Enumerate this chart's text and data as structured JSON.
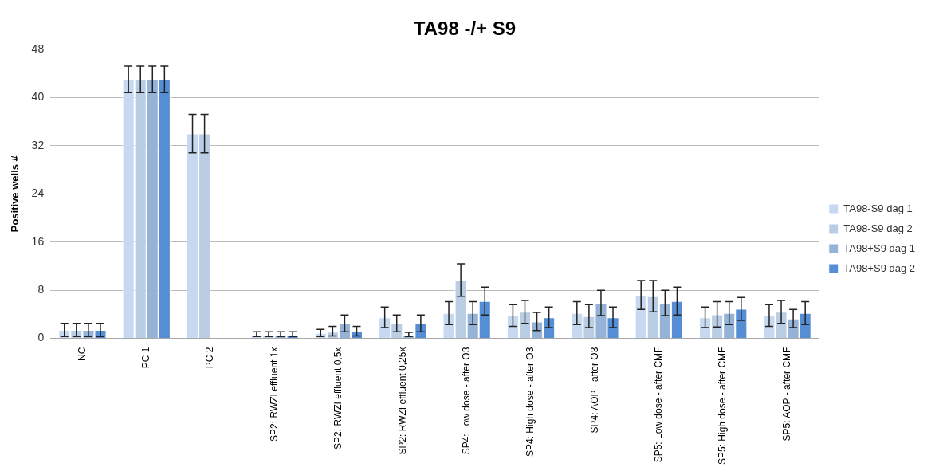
{
  "chart_data": {
    "type": "bar",
    "title": "TA98 -/+ S9",
    "ylabel": "Positive wells #",
    "categories": [
      "NC",
      "PC 1",
      "PC 2",
      "SP2: RWZI effluent 1x",
      "SP2: RWZI effluent 0,5x",
      "SP2: RWZI effluent 0,25x",
      "SP4: Low dose - after O3",
      "SP4: High dose - after O3",
      "SP4: AOP - after O3",
      "SP5: Low dose - after CMF",
      "SP5: High dose - after CMF",
      "SP5: AOP - after CMF"
    ],
    "series": [
      {
        "name": "TA98-S9 dag 1",
        "color": "#c6d9f0",
        "values": [
          1.4,
          43,
          34,
          0.5,
          0.9,
          3.5,
          4.2,
          3.8,
          4.2,
          7.2,
          3.5,
          3.8
        ],
        "errors": [
          1.1,
          2.2,
          3.2,
          [
            0.3,
            1.1
          ],
          0.6,
          1.7,
          1.9,
          1.8,
          1.9,
          2.4,
          1.7,
          1.8
        ]
      },
      {
        "name": "TA98-S9 dag 2",
        "color": "#b9cde5",
        "values": [
          1.4,
          43,
          34,
          0.5,
          1.1,
          2.5,
          9.7,
          4.4,
          3.7,
          7,
          4,
          4.4
        ],
        "errors": [
          1.1,
          2.2,
          3.2,
          [
            0.3,
            1.1
          ],
          [
            0.4,
            2.0
          ],
          1.4,
          2.7,
          1.9,
          1.9,
          2.6,
          2.1,
          1.9
        ]
      },
      {
        "name": "TA98+S9 dag 1",
        "color": "#95b3d7",
        "values": [
          1.4,
          43,
          null,
          0.5,
          2.5,
          0.5,
          4.2,
          2.8,
          5.9,
          5.9,
          4.2,
          3.3
        ],
        "errors": [
          1.1,
          2.2,
          null,
          [
            0.3,
            1.1
          ],
          1.4,
          [
            0.3,
            1.0
          ],
          1.9,
          1.5,
          2.1,
          2.1,
          1.9,
          1.5
        ]
      },
      {
        "name": "TA98+S9 dag 2",
        "color": "#558ed5",
        "values": [
          1.4,
          43,
          null,
          0.5,
          1.2,
          2.5,
          6.2,
          3.5,
          3.5,
          6.2,
          4.9,
          4.2
        ],
        "errors": [
          1.1,
          2.2,
          null,
          [
            0.3,
            1.1
          ],
          0.8,
          1.4,
          2.3,
          1.7,
          1.7,
          2.3,
          1.9,
          1.9
        ]
      }
    ],
    "ylim": [
      0,
      48
    ],
    "yticks": [
      0,
      8,
      16,
      24,
      32,
      40,
      48
    ],
    "grid": "y",
    "legend": "right"
  }
}
